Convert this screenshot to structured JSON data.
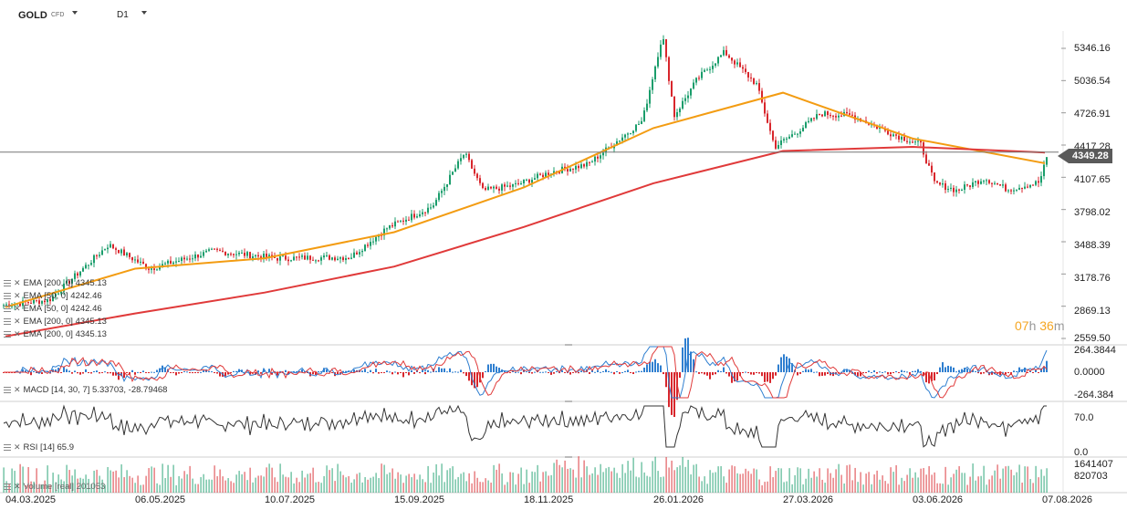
{
  "header": {
    "symbol": "GOLD",
    "symbol_sub": "CFD",
    "timeframe": "D1"
  },
  "price_axis": [
    "5346.16",
    "5036.54",
    "4726.91",
    "4417.28",
    "4107.65",
    "3798.02",
    "3488.39",
    "3178.76",
    "2869.13",
    "2559.50"
  ],
  "current_price": "4349.28",
  "countdown": {
    "h": "07",
    "h_unit": "h",
    "m": "36",
    "m_unit": "m"
  },
  "legend": {
    "price": [
      "EMA [200, 0] 4345.13",
      "EMA [50, 0] 4242.46",
      "EMA [50, 0] 4242.46",
      "EMA [200, 0] 4345.13",
      "EMA [200, 0] 4345.13"
    ],
    "macd": "MACD [14, 30, 7] 5.33703, -28.79468",
    "rsi": "RSI [14] 65.9",
    "volume": "Volume [real] 201053"
  },
  "macd_axis": [
    "264.3844",
    "0.0000",
    "-264.384"
  ],
  "rsi_axis": [
    "70.0",
    "0.0"
  ],
  "volume_axis": [
    "1641407",
    "820703"
  ],
  "dates": [
    "04.03.2025",
    "06.05.2025",
    "10.07.2025",
    "15.09.2025",
    "18.11.2025",
    "26.01.2026",
    "27.03.2026",
    "03.06.2026",
    "07.08.2026"
  ],
  "colors": {
    "up": "#1a9d6b",
    "down": "#d8262c",
    "ema50": "#f39c12",
    "ema200": "#e03a3a",
    "macd": "#2f7fd0",
    "signal": "#e03a3a",
    "rsi": "#333333"
  },
  "chart_data": {
    "type": "line",
    "title": "GOLD",
    "xlabel": "",
    "ylabel": "",
    "x": [
      "04.03.2025",
      "06.05.2025",
      "10.07.2025",
      "15.09.2025",
      "18.11.2025",
      "26.01.2026",
      "27.03.2026",
      "03.06.2026",
      "07.08.2026"
    ],
    "ylim": [
      2559.5,
      5500
    ],
    "series": [
      {
        "name": "EMA [50, 0] 4242.46",
        "values": [
          2860,
          3230,
          3330,
          3580,
          4010,
          4580,
          4920,
          4480,
          4242.46
        ]
      },
      {
        "name": "EMA [200, 0] 4345.13",
        "values": [
          2580,
          2800,
          3000,
          3250,
          3630,
          4050,
          4360,
          4400,
          4345.13
        ]
      }
    ],
    "last_price": 4349.28
  }
}
